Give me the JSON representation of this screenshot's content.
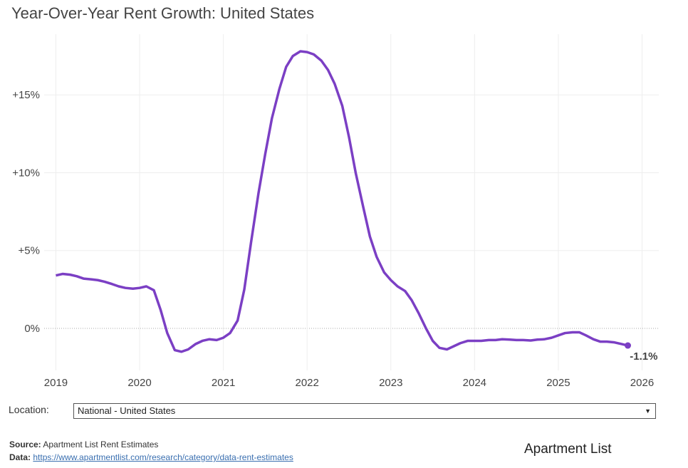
{
  "chart_data": {
    "type": "line",
    "title": "Year-Over-Year Rent Growth: United States",
    "x": [
      2019,
      2019.08,
      2019.17,
      2019.25,
      2019.33,
      2019.42,
      2019.5,
      2019.58,
      2019.67,
      2019.75,
      2019.83,
      2019.92,
      2020,
      2020.08,
      2020.17,
      2020.25,
      2020.33,
      2020.42,
      2020.5,
      2020.58,
      2020.67,
      2020.75,
      2020.83,
      2020.92,
      2021,
      2021.08,
      2021.17,
      2021.25,
      2021.33,
      2021.42,
      2021.5,
      2021.58,
      2021.67,
      2021.75,
      2021.83,
      2021.92,
      2022,
      2022.08,
      2022.17,
      2022.25,
      2022.33,
      2022.42,
      2022.5,
      2022.58,
      2022.67,
      2022.75,
      2022.83,
      2022.92,
      2023,
      2023.08,
      2023.17,
      2023.25,
      2023.33,
      2023.42,
      2023.5,
      2023.58,
      2023.67,
      2023.75,
      2023.83,
      2023.92,
      2024,
      2024.08,
      2024.17,
      2024.25,
      2024.33,
      2024.42,
      2024.5,
      2024.58,
      2024.67,
      2024.75,
      2024.83,
      2024.92,
      2025,
      2025.08,
      2025.17,
      2025.25,
      2025.33,
      2025.42,
      2025.5,
      2025.58,
      2025.67,
      2025.75,
      2025.83
    ],
    "series": [
      {
        "color": "#7b3fc4",
        "values": [
          3.4,
          3.5,
          3.45,
          3.35,
          3.2,
          3.15,
          3.1,
          3.0,
          2.85,
          2.7,
          2.6,
          2.55,
          2.6,
          2.7,
          2.45,
          1.2,
          -0.3,
          -1.4,
          -1.5,
          -1.35,
          -1.0,
          -0.8,
          -0.7,
          -0.75,
          -0.6,
          -0.3,
          0.5,
          2.5,
          5.5,
          8.7,
          11.2,
          13.5,
          15.4,
          16.8,
          17.5,
          17.8,
          17.75,
          17.6,
          17.2,
          16.6,
          15.7,
          14.3,
          12.3,
          10.0,
          7.8,
          5.9,
          4.6,
          3.6,
          3.1,
          2.7,
          2.4,
          1.8,
          1.0,
          0.0,
          -0.8,
          -1.25,
          -1.35,
          -1.15,
          -0.95,
          -0.8,
          -0.8,
          -0.8,
          -0.75,
          -0.75,
          -0.7,
          -0.72,
          -0.75,
          -0.75,
          -0.78,
          -0.72,
          -0.7,
          -0.6,
          -0.45,
          -0.3,
          -0.25,
          -0.25,
          -0.45,
          -0.7,
          -0.85,
          -0.85,
          -0.9,
          -1.0,
          -1.1
        ],
        "value_labels": [
          null,
          null,
          null,
          null,
          null,
          null,
          null,
          null,
          null,
          null,
          null,
          null,
          null,
          null,
          null,
          null,
          null,
          null,
          null,
          null,
          null,
          null,
          null,
          null,
          null,
          null,
          null,
          null,
          null,
          null,
          null,
          null,
          null,
          null,
          null,
          null,
          null,
          null,
          null,
          null,
          null,
          null,
          null,
          null,
          null,
          null,
          null,
          null,
          null,
          null,
          null,
          null,
          null,
          null,
          null,
          null,
          null,
          null,
          null,
          null,
          null,
          null,
          null,
          null,
          null,
          null,
          null,
          null,
          null,
          null,
          null,
          null,
          null,
          null,
          null,
          null,
          null,
          null,
          null,
          null,
          null,
          null,
          "-1.1%"
        ]
      }
    ],
    "xlim": [
      2018.86,
      2026.2
    ],
    "xticks": [
      2019,
      2020,
      2021,
      2022,
      2023,
      2024,
      2025,
      2026
    ],
    "ylim": [
      -2.7,
      18.9
    ],
    "yticks": [
      {
        "value": 0,
        "label": "0%"
      },
      {
        "value": 5,
        "label": "+5%"
      },
      {
        "value": 10,
        "label": "+10%"
      },
      {
        "value": 15,
        "label": "+15%"
      }
    ],
    "grid": true
  },
  "controls": {
    "location_label": "Location:",
    "location_value": "National - United States"
  },
  "footer": {
    "source_key": "Source:",
    "source_text": "Apartment List Rent Estimates",
    "data_key": "Data:",
    "data_link": "https://www.apartmentlist.com/research/category/data-rent-estimates",
    "logo": "Apartment List"
  }
}
